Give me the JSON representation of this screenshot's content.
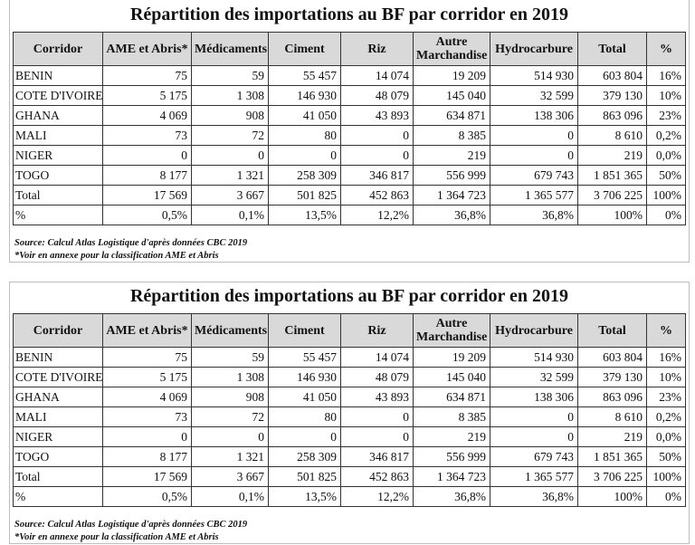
{
  "panels": [
    {
      "title": "Répartition des importations au BF par corridor en 2019",
      "headers": [
        "Corridor",
        "AME et Abris*",
        "Médicaments",
        "Ciment",
        "Riz",
        "Autre Marchandise",
        "Hydrocarbure",
        "Total",
        "%"
      ],
      "rows": [
        [
          "BENIN",
          "75",
          "59",
          "55 457",
          "14 074",
          "19 209",
          "514 930",
          "603 804",
          "16%"
        ],
        [
          "COTE D'IVOIRE",
          "5 175",
          "1 308",
          "146 930",
          "48 079",
          "145 040",
          "32 599",
          "379 130",
          "10%"
        ],
        [
          "GHANA",
          "4 069",
          "908",
          "41 050",
          "43 893",
          "634 871",
          "138 306",
          "863 096",
          "23%"
        ],
        [
          "MALI",
          "73",
          "72",
          "80",
          "0",
          "8 385",
          "0",
          "8 610",
          "0,2%"
        ],
        [
          "NIGER",
          "0",
          "0",
          "0",
          "0",
          "219",
          "0",
          "219",
          "0,0%"
        ],
        [
          "TOGO",
          "8 177",
          "1 321",
          "258 309",
          "346 817",
          "556 999",
          "679 743",
          "1 851 365",
          "50%"
        ],
        [
          "Total",
          "17 569",
          "3 667",
          "501 825",
          "452 863",
          "1 364 723",
          "1 365 577",
          "3 706 225",
          "100%"
        ],
        [
          "%",
          "0,5%",
          "0,1%",
          "13,5%",
          "12,2%",
          "36,8%",
          "36,8%",
          "100%",
          "0%"
        ]
      ],
      "source": "Source: Calcul Atlas Logistique d'après données CBC 2019",
      "note": "*Voir en annexe pour la classification AME et Abris"
    },
    {
      "title": "Répartition des importations au BF par corridor en 2019",
      "headers": [
        "Corridor",
        "AME et Abris*",
        "Médicaments",
        "Ciment",
        "Riz",
        "Autre Marchandise",
        "Hydrocarbure",
        "Total",
        "%"
      ],
      "rows": [
        [
          "BENIN",
          "75",
          "59",
          "55 457",
          "14 074",
          "19 209",
          "514 930",
          "603 804",
          "16%"
        ],
        [
          "COTE D'IVOIRE",
          "5 175",
          "1 308",
          "146 930",
          "48 079",
          "145 040",
          "32 599",
          "379 130",
          "10%"
        ],
        [
          "GHANA",
          "4 069",
          "908",
          "41 050",
          "43 893",
          "634 871",
          "138 306",
          "863 096",
          "23%"
        ],
        [
          "MALI",
          "73",
          "72",
          "80",
          "0",
          "8 385",
          "0",
          "8 610",
          "0,2%"
        ],
        [
          "NIGER",
          "0",
          "0",
          "0",
          "0",
          "219",
          "0",
          "219",
          "0,0%"
        ],
        [
          "TOGO",
          "8 177",
          "1 321",
          "258 309",
          "346 817",
          "556 999",
          "679 743",
          "1 851 365",
          "50%"
        ],
        [
          "Total",
          "17 569",
          "3 667",
          "501 825",
          "452 863",
          "1 364 723",
          "1 365 577",
          "3 706 225",
          "100%"
        ],
        [
          "%",
          "0,5%",
          "0,1%",
          "13,5%",
          "12,2%",
          "36,8%",
          "36,8%",
          "100%",
          "0%"
        ]
      ],
      "source": "Source: Calcul Atlas Logistique d'après données CBC 2019",
      "note": "*Voir en annexe pour la classification AME et Abris"
    }
  ]
}
